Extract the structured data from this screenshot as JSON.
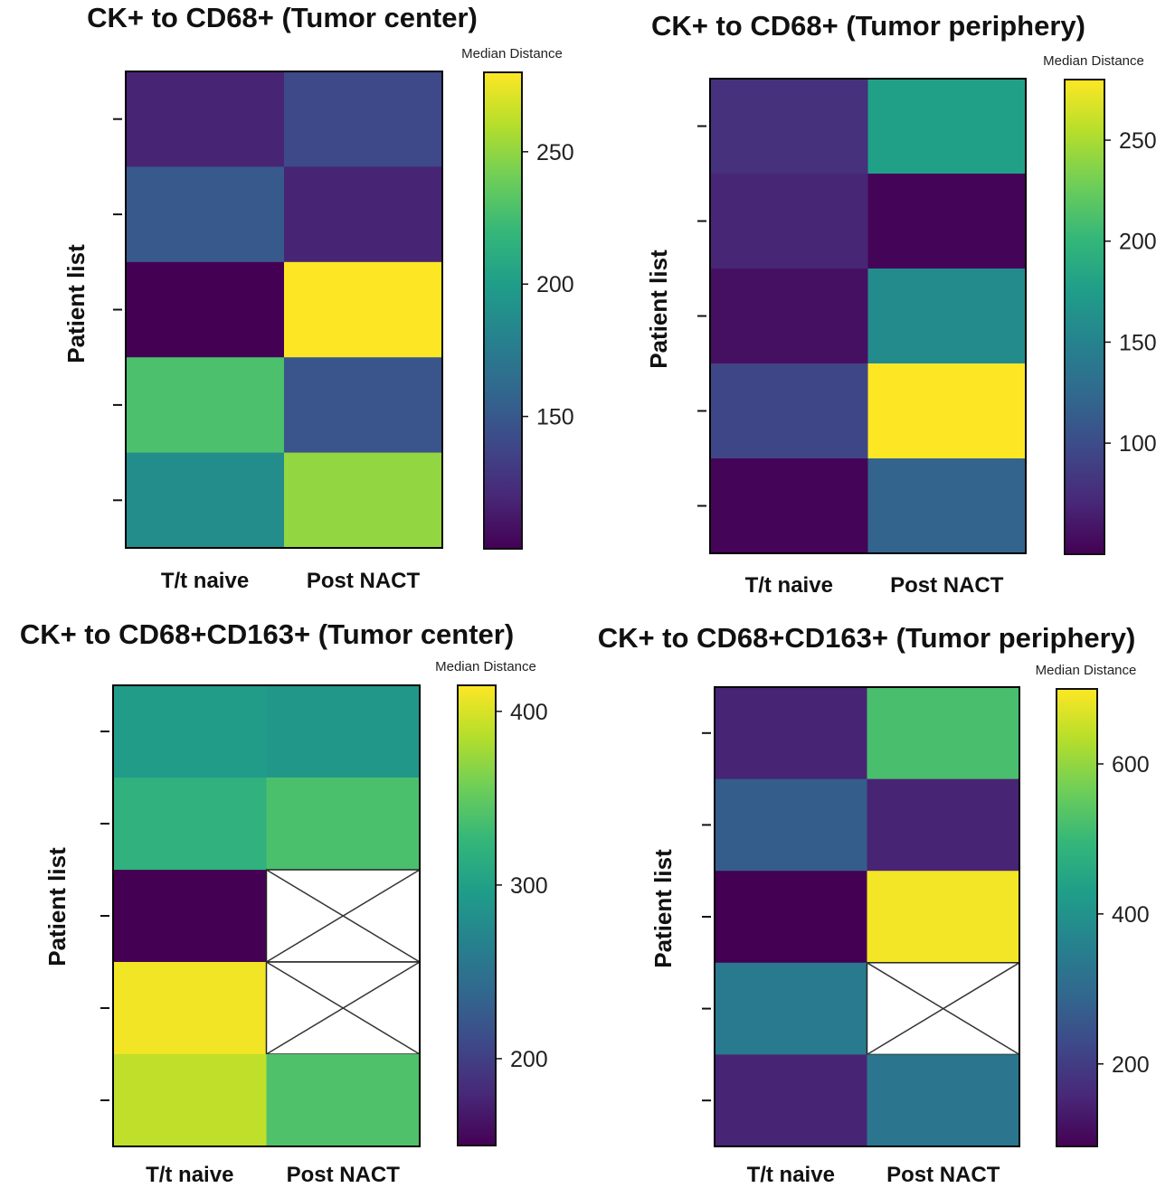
{
  "chart_data": [
    {
      "type": "heatmap",
      "title": "CK+ to CD68+ (Tumor center)",
      "ylabel": "Patient list",
      "categories": [
        "T/t naive",
        "Post NACT"
      ],
      "rows": 5,
      "values": [
        [
          118,
          140
        ],
        [
          150,
          118
        ],
        [
          100,
          280
        ],
        [
          228,
          148
        ],
        [
          188,
          250
        ]
      ],
      "colorbar": {
        "title": "Median Distance",
        "range": [
          100,
          280
        ],
        "ticks": [
          150,
          200,
          250
        ]
      }
    },
    {
      "type": "heatmap",
      "title": "CK+ to CD68+ (Tumor periphery)",
      "ylabel": "Patient list",
      "categories": [
        "T/t naive",
        "Post NACT"
      ],
      "rows": 5,
      "values": [
        [
          78,
          178
        ],
        [
          70,
          48
        ],
        [
          55,
          158
        ],
        [
          95,
          280
        ],
        [
          48,
          120
        ]
      ],
      "colorbar": {
        "title": "Median Distance",
        "range": [
          45,
          280
        ],
        "ticks": [
          100,
          150,
          200,
          250
        ]
      }
    },
    {
      "type": "heatmap",
      "title": "CK+ to CD68+CD163+ (Tumor center)",
      "ylabel": "Patient list",
      "categories": [
        "T/t naive",
        "Post NACT"
      ],
      "rows": 5,
      "values": [
        [
          295,
          290
        ],
        [
          320,
          338
        ],
        [
          150,
          null
        ],
        [
          410,
          null
        ],
        [
          390,
          340
        ]
      ],
      "colorbar": {
        "title": "Median Distance",
        "range": [
          150,
          415
        ],
        "ticks": [
          200,
          300,
          400
        ]
      }
    },
    {
      "type": "heatmap",
      "title": "CK+ to CD68+CD163+ (Tumor periphery)",
      "ylabel": "Patient list",
      "categories": [
        "T/t naive",
        "Post NACT"
      ],
      "rows": 5,
      "values": [
        [
          150,
          520
        ],
        [
          270,
          150
        ],
        [
          90,
          690
        ],
        [
          340,
          null
        ],
        [
          150,
          330
        ]
      ],
      "colorbar": {
        "title": "Median Distance",
        "range": [
          90,
          700
        ],
        "ticks": [
          200,
          400,
          600
        ]
      }
    }
  ],
  "colors": {
    "viridis": [
      "#440154",
      "#482878",
      "#3e4989",
      "#31688e",
      "#26828e",
      "#1f9e89",
      "#35b779",
      "#6ece58",
      "#b5de2b",
      "#fde725"
    ],
    "missing_fill": "#ffffff",
    "outline": "#000000"
  }
}
